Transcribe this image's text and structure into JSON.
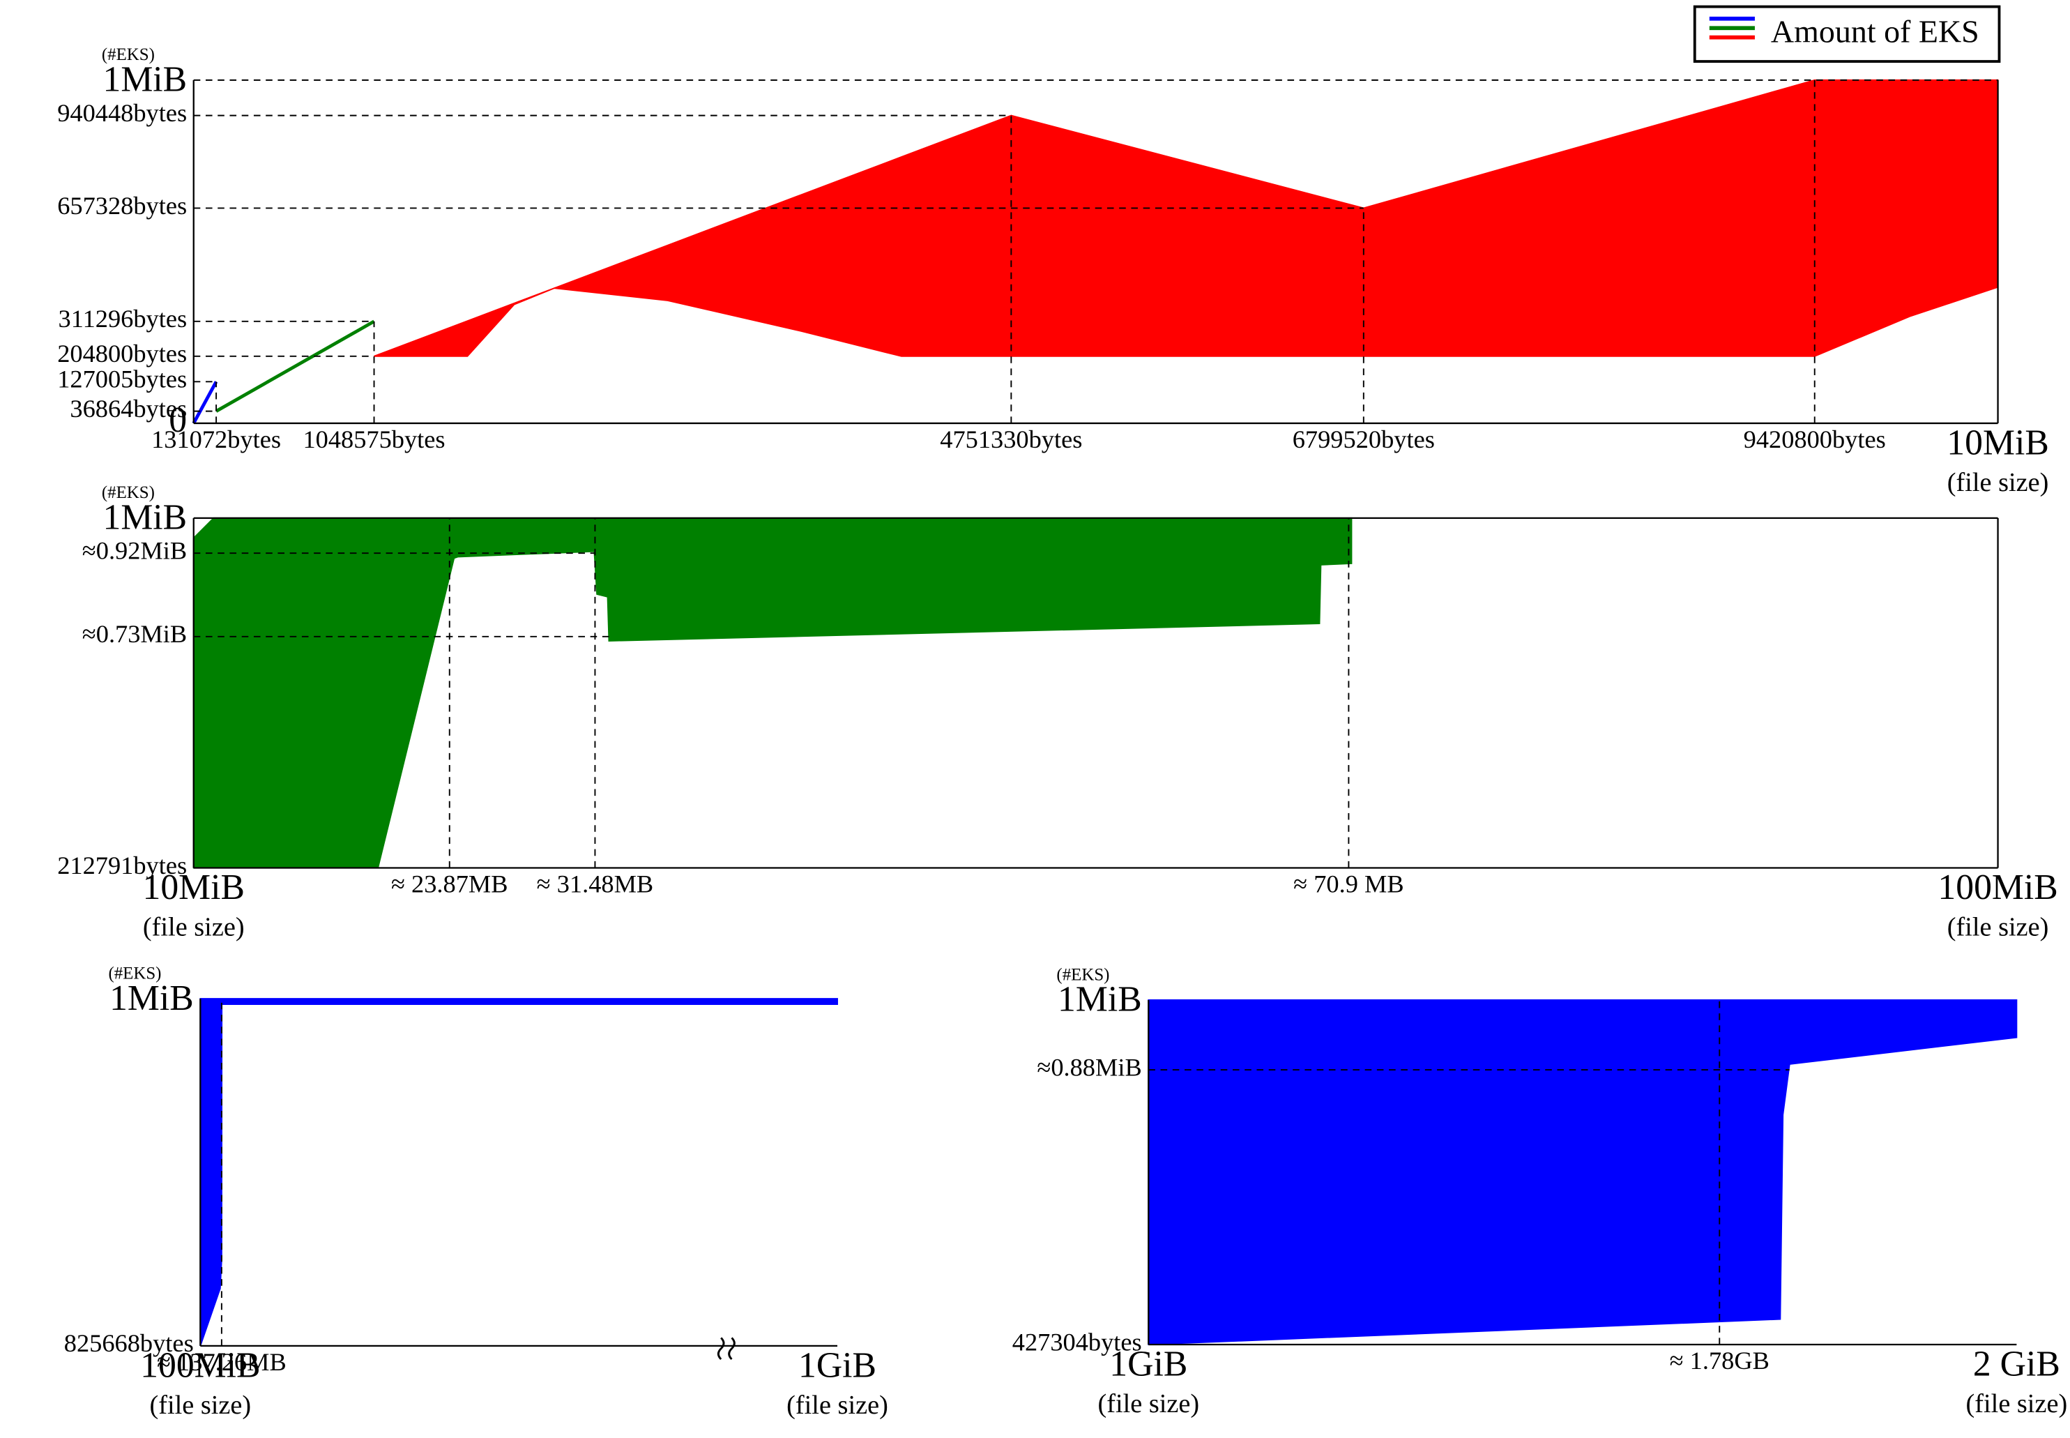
{
  "chart_data": [
    {
      "type": "range-area",
      "y_label": "(#EKS)",
      "x_label": "(file size)",
      "legend": {
        "label": "Amount of EKS",
        "colors": [
          "#0000ff",
          "#008000",
          "#ff0000"
        ],
        "position": "top-right"
      },
      "xlim": [
        0,
        10485760
      ],
      "ylim": [
        0,
        1048576
      ],
      "xticks": [
        {
          "value": 131072,
          "label": "131072bytes"
        },
        {
          "value": 1048575,
          "label": "1048575bytes"
        },
        {
          "value": 4751330,
          "label": "4751330bytes"
        },
        {
          "value": 6799520,
          "label": "6799520bytes"
        },
        {
          "value": 9420800,
          "label": "9420800bytes"
        },
        {
          "value": 10485760,
          "label": "10MiB"
        }
      ],
      "yticks": [
        0,
        {
          "value": 36864,
          "label": "36864bytes"
        },
        {
          "value": 127005,
          "label": "127005bytes"
        },
        {
          "value": 204800,
          "label": "204800bytes"
        },
        {
          "value": 311296,
          "label": "311296bytes"
        },
        {
          "value": 657328,
          "label": "657328bytes"
        },
        {
          "value": 940448,
          "label": "940448bytes"
        },
        {
          "value": 1048576,
          "label": "1MiB"
        }
      ],
      "series": [
        {
          "color": "#0000ff",
          "x": [
            0,
            131072
          ],
          "values": [
            0,
            127005
          ]
        },
        {
          "color": "#008000",
          "x": [
            131072,
            1048575
          ],
          "values": [
            36864,
            311296
          ]
        },
        {
          "color": "#ff0000",
          "x": [
            1048575,
            1591000,
            1862700,
            2095500,
            2755000,
            3531000,
            4113500,
            4751330,
            6799520,
            9420800,
            9973000,
            10485760
          ],
          "values": [
            204800,
            312570,
            366550,
            412800,
            543830,
            698010,
            813740,
            940448,
            657328,
            1048576,
            1048576,
            1048576
          ],
          "lower": [
            204800,
            204800,
            363000,
            412800,
            375000,
            281500,
            204800,
            204800,
            204800,
            204800,
            326400,
            416000
          ]
        }
      ]
    },
    {
      "type": "range-area",
      "y_label": "(#EKS)",
      "x_label": "(file size)",
      "xlim": [
        10485760,
        104857600
      ],
      "ylim": [
        212791,
        1048576
      ],
      "xticks": [
        {
          "value": 10485760,
          "label": "10MiB"
        },
        {
          "value": 23870000,
          "label": "≈ 23.87MB"
        },
        {
          "value": 31480000,
          "label": "≈ 31.48MB"
        },
        {
          "value": 70900000,
          "label": "≈ 70.9 MB"
        },
        {
          "value": 104857600,
          "label": "100MiB"
        }
      ],
      "yticks": [
        {
          "value": 212791,
          "label": "212791bytes"
        },
        {
          "value": 765460,
          "label": "≈0.73MiB"
        },
        {
          "value": 964690,
          "label": "≈0.92MiB"
        },
        {
          "value": 1048576,
          "label": "1MiB"
        }
      ],
      "series": [
        {
          "color": "#008000",
          "x": [
            10485760,
            11533555,
            20125470,
            24107100,
            24316600,
            31441660,
            31581370,
            32140190,
            32210040,
            69371840,
            69441700,
            71048350
          ],
          "values": [
            1000721,
            1048576,
            1048576,
            1048576,
            1048576,
            1048576,
            1048576,
            1048576,
            1048576,
            1048576,
            1048576,
            1048576
          ],
          "lower": [
            212791,
            212791,
            212791,
            952871,
            956061,
            968821,
            866741,
            860361,
            755091,
            796561,
            936921,
            940111
          ]
        }
      ]
    },
    {
      "type": "range-area",
      "y_label": "(#EKS)",
      "x_label": "(file size)",
      "axis_break": true,
      "xlim": [
        104857600,
        1073741824
      ],
      "ylim": [
        825668,
        1048576
      ],
      "xticks": [
        {
          "value": 104857600,
          "label": "100MiB"
        },
        {
          "value": 137260000,
          "label": "≈ 137.26MB"
        },
        {
          "value": 1073741824,
          "label": "1GiB"
        }
      ],
      "yticks": [
        {
          "value": 825668,
          "label": "825668bytes"
        },
        {
          "value": 1048576,
          "label": "1MiB"
        }
      ],
      "series": [
        {
          "color": "#0000ff",
          "x": [
            104857600,
            135000000,
            137260000,
            137500000,
            1073741824
          ],
          "values": [
            1048576,
            1048576,
            1048576,
            1048576,
            1048576
          ],
          "lower": [
            825668,
            862500,
            881400,
            1045000,
            1045000
          ]
        }
      ]
    },
    {
      "type": "range-area",
      "y_label": "(#EKS)",
      "x_label": "(file size)",
      "xlim": [
        1073741824,
        2147483648
      ],
      "ylim": [
        427304,
        1048576
      ],
      "xticks": [
        {
          "value": 1073741824,
          "label": "1GiB"
        },
        {
          "value": 1780000000,
          "label": "≈ 1.78GB"
        },
        {
          "value": 2147483648,
          "label": "2 GiB"
        }
      ],
      "yticks": [
        {
          "value": 427304,
          "label": "427304bytes"
        },
        {
          "value": 922747,
          "label": "≈0.88MiB"
        },
        {
          "value": 1048576,
          "label": "1MiB"
        }
      ],
      "series": [
        {
          "color": "#0000ff",
          "x": [
            1073741824,
            1855096000,
            1858400000,
            1866660000,
            2147483648
          ],
          "values": [
            1048576,
            1048576,
            1048576,
            1048576,
            1048576
          ],
          "lower": [
            427304,
            473050,
            841480,
            933000,
            981150
          ]
        }
      ]
    }
  ]
}
